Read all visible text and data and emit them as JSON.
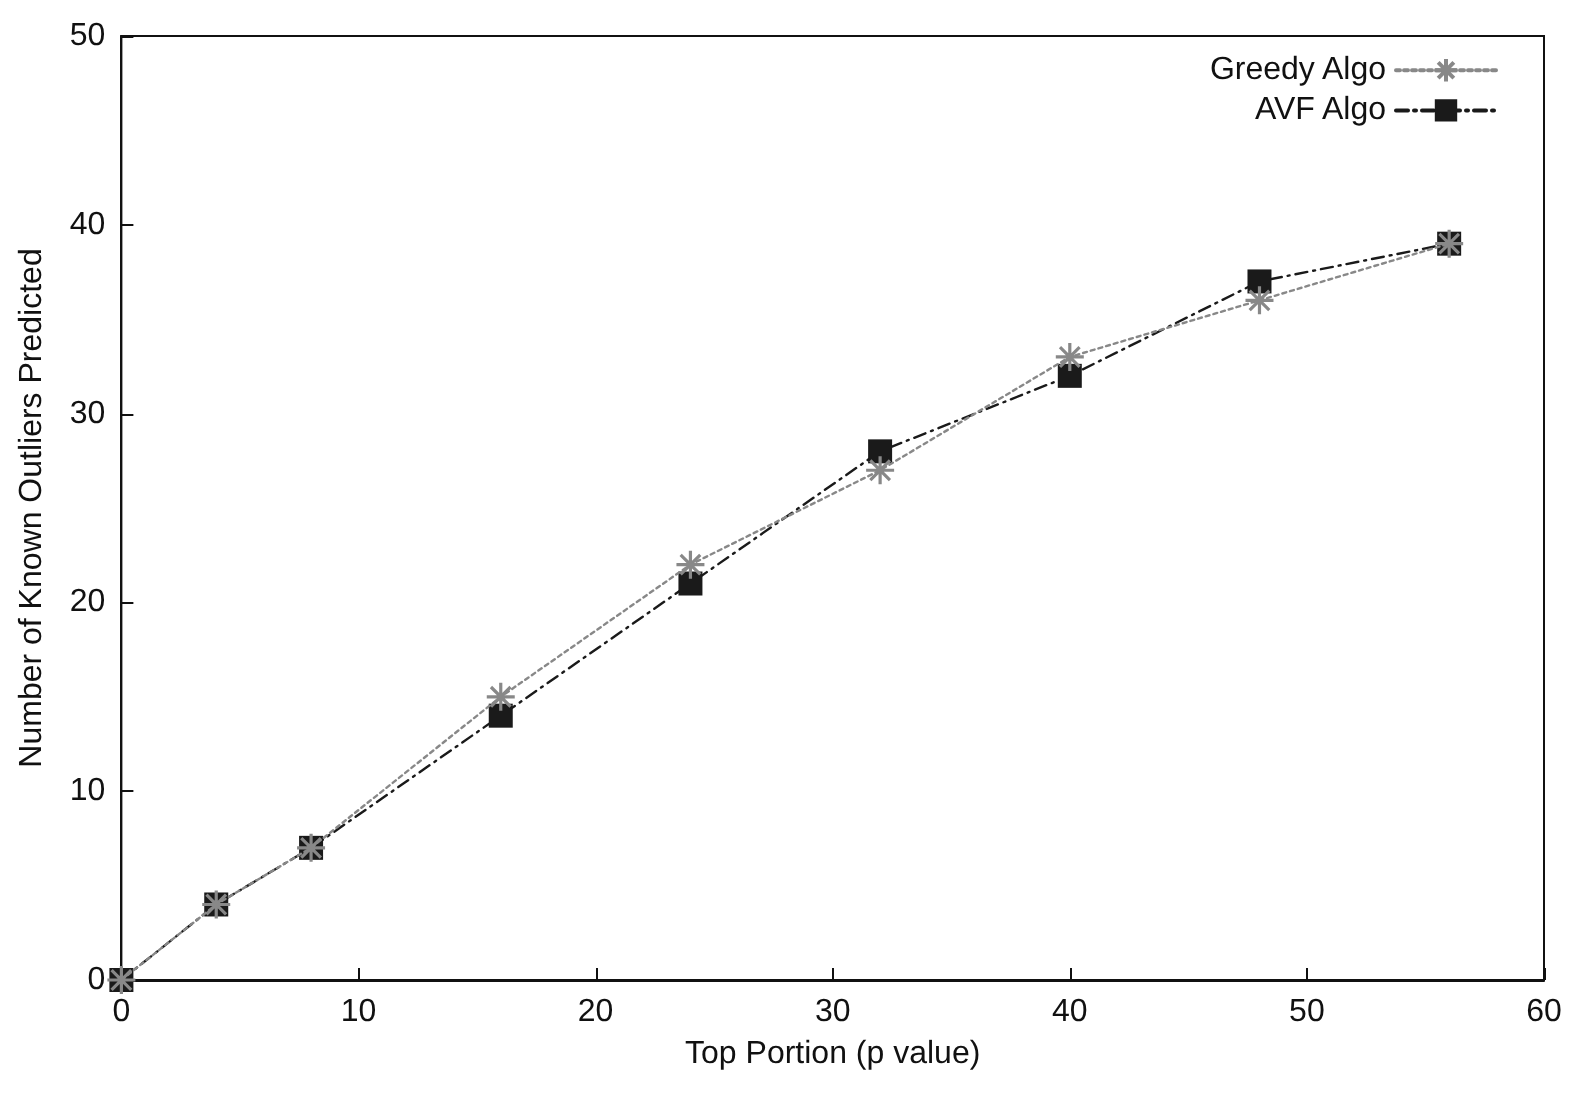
{
  "chart_data": {
    "type": "line",
    "xlabel": "Top Portion (p value)",
    "ylabel": "Number of Known Outliers Predicted",
    "x": [
      0,
      4,
      8,
      16,
      24,
      32,
      40,
      48,
      56
    ],
    "series": [
      {
        "name": "Greedy Algo",
        "color": "#888888",
        "marker": "cross",
        "line_style": "dotted",
        "values": [
          0,
          4,
          7,
          15,
          22,
          27,
          33,
          36,
          39
        ]
      },
      {
        "name": "AVF Algo",
        "color": "#1a1a1a",
        "marker": "square",
        "line_style": "dashed",
        "values": [
          0,
          4,
          7,
          14,
          21,
          28,
          32,
          37,
          39
        ]
      }
    ],
    "xlim": [
      0,
      60
    ],
    "xticks": [
      0,
      10,
      20,
      30,
      40,
      50,
      60
    ],
    "ylim": [
      0,
      50
    ],
    "yticks": [
      0,
      10,
      20,
      30,
      40,
      50
    ],
    "grid": false,
    "legend": "top right"
  }
}
